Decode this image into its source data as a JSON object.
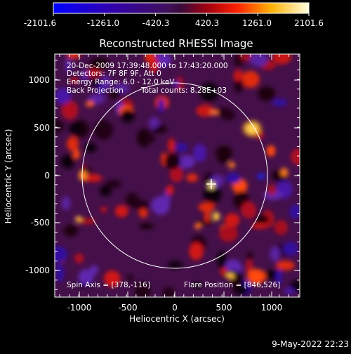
{
  "colorbar": {
    "ticks": [
      "-2101.6",
      "-1261.0",
      "-420.3",
      "420.3",
      "1261.0",
      "2101.6"
    ]
  },
  "plot": {
    "title": "Reconstructed RHESSI Image",
    "xlabel": "Heliocentric X (arcsec)",
    "ylabel": "Heliocentric Y (arcsec)",
    "xticks": [
      "-1000",
      "-500",
      "0",
      "500",
      "1000"
    ],
    "yticks": [
      "1000",
      "500",
      "0",
      "-500",
      "-1000"
    ],
    "xlim": [
      -1280,
      1290
    ],
    "ylim": [
      -1280,
      1290
    ]
  },
  "annotations": {
    "time": "20-Dec-2009 17:39:48.000 to 17:43:20.000",
    "detectors": "Detectors: 7F 8F 9F, Att 0",
    "energy": "Energy Range: 6.0 - 12.0 keV",
    "method": "Back Projection",
    "counts": "Total counts: 8.28E+03",
    "spin_axis": "Spin Axis = [378,-116]",
    "flare_position": "Flare Position = [846,526]"
  },
  "footer": {
    "date": "9-May-2022 22:23"
  },
  "solar_disk": {
    "center_x": 0,
    "center_y": 0,
    "radius": 975
  },
  "colors": {
    "positive_peak": "#ffffc8",
    "negative_peak": "#0000ff",
    "background": "#000000"
  }
}
